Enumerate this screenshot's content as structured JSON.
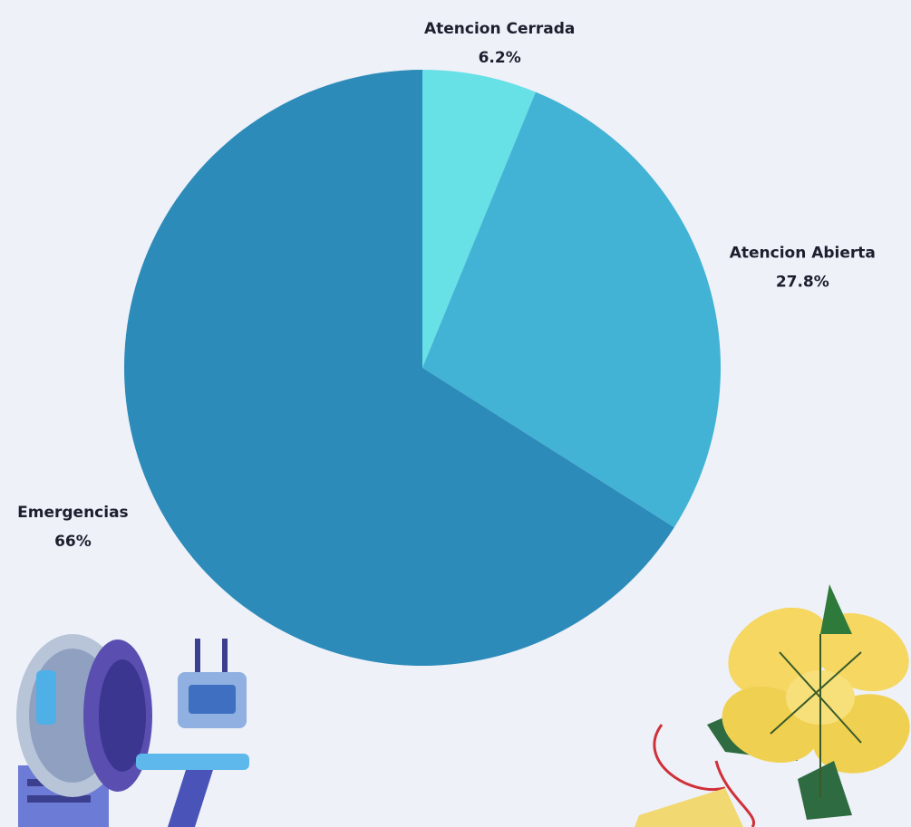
{
  "chart_data": {
    "type": "pie",
    "categories": [
      "Atencion Cerrada",
      "Atencion Abierta",
      "Emergencias"
    ],
    "values": [
      6.2,
      27.8,
      66
    ],
    "value_labels": [
      "6.2%",
      "27.8%",
      "66%"
    ],
    "colors": [
      "#67e0e6",
      "#42b3d5",
      "#2d8bba"
    ]
  }
}
